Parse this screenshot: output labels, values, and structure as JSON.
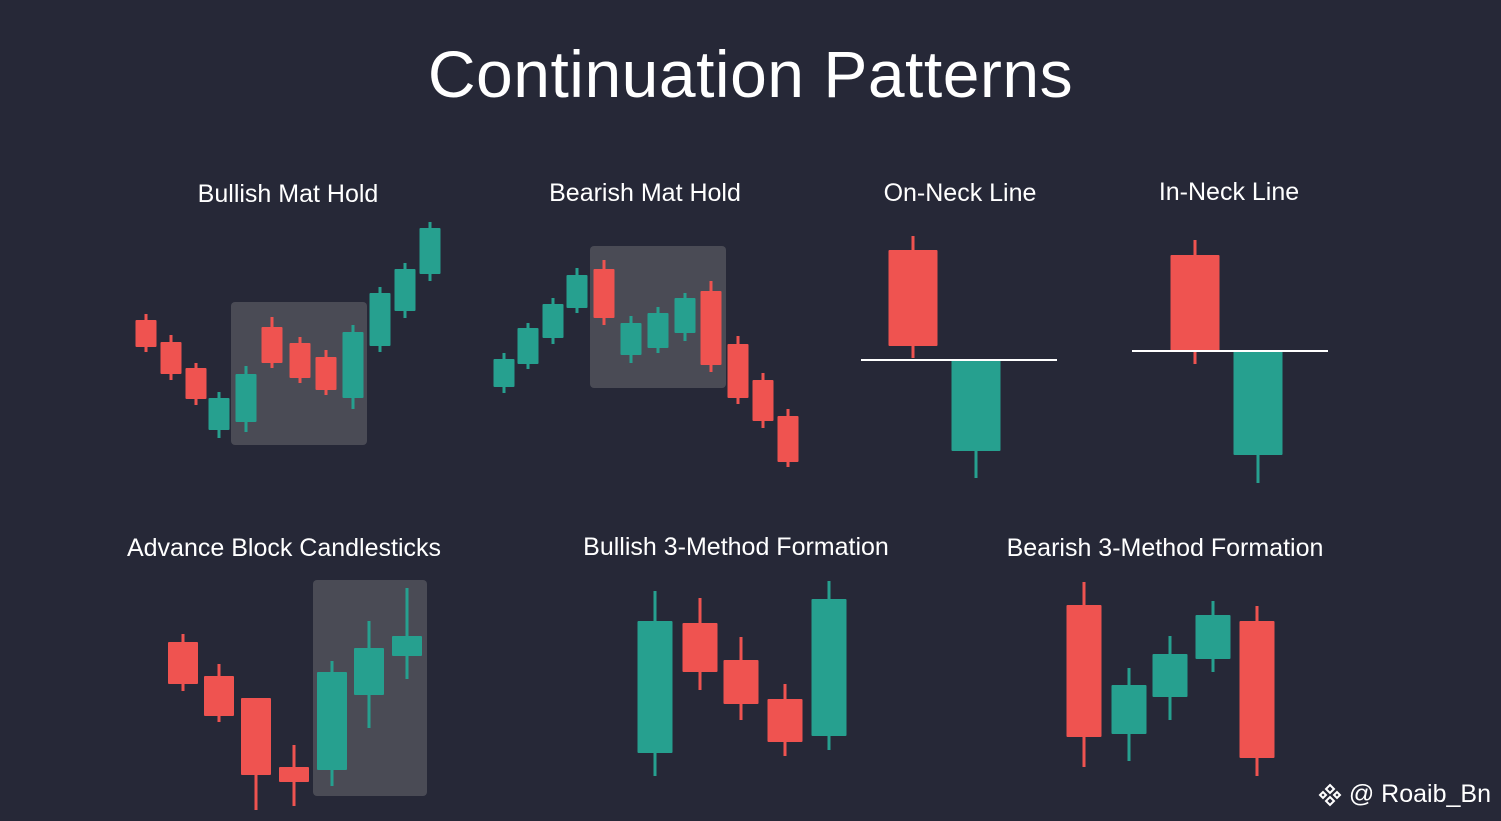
{
  "title": "Continuation Patterns",
  "watermark": "@ Roaib_Bn",
  "colors": {
    "background": "#262837",
    "bull": "#26a08f",
    "bear": "#ef5350",
    "highlight": "#4a4b55",
    "line": "#ffffff"
  },
  "patterns": [
    {
      "title": "Bullish Mat Hold",
      "candles": [
        {
          "c": "bear",
          "o": 347,
          "cl": 320,
          "h": 314,
          "l": 352
        },
        {
          "c": "bear",
          "o": 374,
          "cl": 342,
          "h": 335,
          "l": 380
        },
        {
          "c": "bear",
          "o": 399,
          "cl": 368,
          "h": 363,
          "l": 405
        },
        {
          "c": "bull",
          "o": 398,
          "cl": 430,
          "h": 392,
          "l": 438
        },
        {
          "c": "bull",
          "o": 374,
          "cl": 422,
          "h": 366,
          "l": 432
        },
        {
          "c": "bear",
          "o": 363,
          "cl": 327,
          "h": 317,
          "l": 368
        },
        {
          "c": "bear",
          "o": 378,
          "cl": 343,
          "h": 337,
          "l": 383
        },
        {
          "c": "bear",
          "o": 390,
          "cl": 357,
          "h": 350,
          "l": 395
        },
        {
          "c": "bull",
          "o": 332,
          "cl": 398,
          "h": 325,
          "l": 409
        },
        {
          "c": "bull",
          "o": 293,
          "cl": 346,
          "h": 287,
          "l": 352
        },
        {
          "c": "bull",
          "o": 269,
          "cl": 311,
          "h": 263,
          "l": 318
        },
        {
          "c": "bull",
          "o": 228,
          "cl": 274,
          "h": 222,
          "l": 281
        }
      ]
    },
    {
      "title": "Bearish Mat Hold",
      "candles": [
        {
          "c": "bull",
          "o": 359,
          "cl": 387,
          "h": 353,
          "l": 393
        },
        {
          "c": "bull",
          "o": 328,
          "cl": 364,
          "h": 323,
          "l": 369
        },
        {
          "c": "bull",
          "o": 304,
          "cl": 338,
          "h": 298,
          "l": 344
        },
        {
          "c": "bull",
          "o": 275,
          "cl": 308,
          "h": 268,
          "l": 313
        },
        {
          "c": "bear",
          "o": 318,
          "cl": 269,
          "h": 260,
          "l": 325
        },
        {
          "c": "bull",
          "o": 323,
          "cl": 355,
          "h": 316,
          "l": 363
        },
        {
          "c": "bull",
          "o": 313,
          "cl": 348,
          "h": 307,
          "l": 353
        },
        {
          "c": "bull",
          "o": 298,
          "cl": 333,
          "h": 293,
          "l": 341
        },
        {
          "c": "bear",
          "o": 365,
          "cl": 291,
          "h": 281,
          "l": 372
        },
        {
          "c": "bear",
          "o": 398,
          "cl": 344,
          "h": 336,
          "l": 404
        },
        {
          "c": "bear",
          "o": 421,
          "cl": 380,
          "h": 373,
          "l": 428
        },
        {
          "c": "bear",
          "o": 462,
          "cl": 416,
          "h": 409,
          "l": 467
        }
      ]
    },
    {
      "title": "On-Neck Line",
      "candles": [
        {
          "c": "bear",
          "o": 346,
          "cl": 250,
          "h": 236,
          "l": 358
        },
        {
          "c": "bull",
          "o": 360,
          "cl": 451,
          "h": 360,
          "l": 478
        }
      ]
    },
    {
      "title": "In-Neck Line",
      "candles": [
        {
          "c": "bear",
          "o": 351,
          "cl": 255,
          "h": 240,
          "l": 364
        },
        {
          "c": "bull",
          "o": 351,
          "cl": 455,
          "h": 351,
          "l": 483
        }
      ]
    },
    {
      "title": "Advance Block Candlesticks",
      "candles": [
        {
          "c": "bear",
          "o": 684,
          "cl": 642,
          "h": 634,
          "l": 691
        },
        {
          "c": "bear",
          "o": 716,
          "cl": 676,
          "h": 664,
          "l": 722
        },
        {
          "c": "bear",
          "o": 775,
          "cl": 698,
          "h": 698,
          "l": 810
        },
        {
          "c": "bear",
          "o": 782,
          "cl": 767,
          "h": 745,
          "l": 806
        },
        {
          "c": "bull",
          "o": 672,
          "cl": 770,
          "h": 661,
          "l": 786
        },
        {
          "c": "bull",
          "o": 648,
          "cl": 695,
          "h": 621,
          "l": 728
        },
        {
          "c": "bull",
          "o": 636,
          "cl": 656,
          "h": 588,
          "l": 679
        }
      ]
    },
    {
      "title": "Bullish 3-Method Formation",
      "candles": [
        {
          "c": "bull",
          "o": 621,
          "cl": 753,
          "h": 591,
          "l": 776
        },
        {
          "c": "bear",
          "o": 672,
          "cl": 623,
          "h": 598,
          "l": 690
        },
        {
          "c": "bear",
          "o": 704,
          "cl": 660,
          "h": 637,
          "l": 720
        },
        {
          "c": "bear",
          "o": 742,
          "cl": 699,
          "h": 684,
          "l": 756
        },
        {
          "c": "bull",
          "o": 599,
          "cl": 736,
          "h": 581,
          "l": 750
        }
      ]
    },
    {
      "title": "Bearish 3-Method Formation",
      "candles": [
        {
          "c": "bear",
          "o": 737,
          "cl": 605,
          "h": 582,
          "l": 767
        },
        {
          "c": "bull",
          "o": 685,
          "cl": 734,
          "h": 668,
          "l": 761
        },
        {
          "c": "bull",
          "o": 654,
          "cl": 697,
          "h": 636,
          "l": 720
        },
        {
          "c": "bull",
          "o": 615,
          "cl": 659,
          "h": 601,
          "l": 672
        },
        {
          "c": "bear",
          "o": 758,
          "cl": 621,
          "h": 606,
          "l": 776
        }
      ]
    }
  ]
}
